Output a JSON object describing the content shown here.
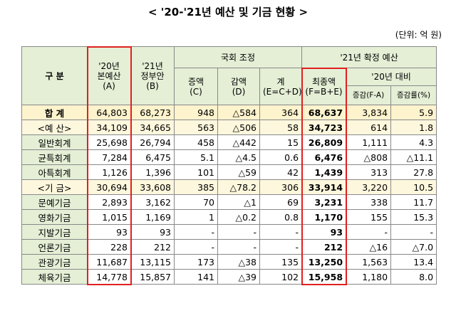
{
  "header": {
    "title": "< '20-'21년 예산 및 기금 현황 >",
    "unit": "(단위: 억 원)"
  },
  "table": {
    "columns": {
      "category": "구  분",
      "budget_20": "'20년\n본예산\n(A)",
      "gov_21": "'21년\n정부안\n(B)",
      "assembly": "국회 조정",
      "final_21": "'21년 확정 예산",
      "increase": "증액\n(C)",
      "decrease": "감액\n(D)",
      "sum": "계\n(E=C+D)",
      "final": "최종액\n(F=B+E)",
      "vs_20": "'20년 대비",
      "change": "증감(F-A)",
      "change_rate": "증감률(%)"
    },
    "rows": [
      [
        "합  계",
        "64,803",
        "68,273",
        "948",
        "△584",
        "364",
        "68,637",
        "3,834",
        "5.9"
      ],
      [
        "<예  산>",
        "34,109",
        "34,665",
        "563",
        "△506",
        "58",
        "34,723",
        "614",
        "1.8"
      ],
      [
        "일반회계",
        "25,698",
        "26,794",
        "458",
        "△442",
        "15",
        "26,809",
        "1,111",
        "4.3"
      ],
      [
        "균특회계",
        "7,284",
        "6,475",
        "5.1",
        "△4.5",
        "0.6",
        "6,476",
        "△808",
        "△11.1"
      ],
      [
        "아특회계",
        "1,126",
        "1,396",
        "101",
        "△59",
        "42",
        "1,439",
        "313",
        "27.8"
      ],
      [
        "<기  금>",
        "30,694",
        "33,608",
        "385",
        "△78.2",
        "306",
        "33,914",
        "3,220",
        "10.5"
      ],
      [
        "문예기금",
        "2,893",
        "3,162",
        "70",
        "△1",
        "69",
        "3,231",
        "338",
        "11.7"
      ],
      [
        "영화기금",
        "1,015",
        "1,169",
        "1",
        "△0.2",
        "0.8",
        "1,170",
        "155",
        "15.3"
      ],
      [
        "지발기금",
        "93",
        "93",
        "-",
        "-",
        "-",
        "93",
        "-",
        "-"
      ],
      [
        "언론기금",
        "228",
        "212",
        "-",
        "-",
        "-",
        "212",
        "△16",
        "△7.0"
      ],
      [
        "관광기금",
        "11,687",
        "13,115",
        "173",
        "△38",
        "135",
        "13,250",
        "1,563",
        "13.4"
      ],
      [
        "체육기금",
        "14,778",
        "15,857",
        "141",
        "△39",
        "102",
        "15,958",
        "1,180",
        "8.0"
      ]
    ]
  }
}
